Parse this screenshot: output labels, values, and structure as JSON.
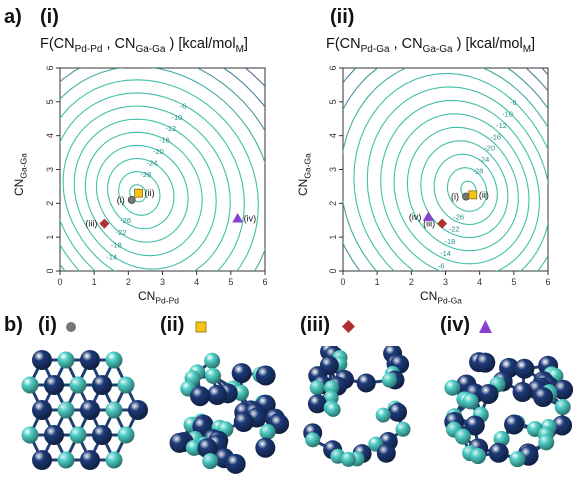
{
  "panel_a": {
    "label": "a)",
    "plots": [
      {
        "id": "i",
        "label": "(i)",
        "title_main": "F(CN",
        "title_sub1": "Pd-Pd",
        "title_sep": " , CN",
        "title_sub2": "Ga-Ga",
        "title_end": " ) [kcal/mol",
        "title_sub3": "M",
        "title_close": "]",
        "xlabel_main": "CN",
        "xlabel_sub": "Pd-Pd",
        "ylabel_main": "CN",
        "ylabel_sub": "Ga-Ga",
        "x_ticks": [
          "0",
          "1",
          "2",
          "3",
          "4",
          "5",
          "6"
        ],
        "y_ticks": [
          "0",
          "1",
          "2",
          "3",
          "4",
          "5",
          "6"
        ],
        "contour_labels": [
          "-6",
          "-10",
          "-12",
          "-16",
          "-20",
          "-24",
          "-28",
          "-26",
          "-22",
          "-18",
          "-14",
          "-12",
          "-10",
          "-8",
          "-6"
        ],
        "markers": [
          {
            "label": "(i)",
            "kind": "circle",
            "color": "#777777",
            "x": 2.1,
            "y": 2.1
          },
          {
            "label": "(ii)",
            "kind": "square",
            "color": "#f5c518",
            "x": 2.3,
            "y": 2.3
          },
          {
            "label": "(iii)",
            "kind": "diamond",
            "color": "#b03030",
            "x": 1.3,
            "y": 1.4
          },
          {
            "label": "(iv)",
            "kind": "triangle",
            "color": "#8a3fd1",
            "x": 5.2,
            "y": 1.55
          }
        ]
      },
      {
        "id": "ii",
        "label": "(ii)",
        "title_main": "F(CN",
        "title_sub1": "Pd-Ga",
        "title_sep": " , CN",
        "title_sub2": "Ga-Ga",
        "title_end": " ) [kcal/mol",
        "title_sub3": "M",
        "title_close": "]",
        "xlabel_main": "CN",
        "xlabel_sub": "Pd-Ga",
        "ylabel_main": "CN",
        "ylabel_sub": "Ga-Ga",
        "x_ticks": [
          "0",
          "1",
          "2",
          "3",
          "4",
          "5",
          "6"
        ],
        "y_ticks": [
          "0",
          "1",
          "2",
          "3",
          "4",
          "5",
          "6"
        ],
        "contour_labels": [
          "-6",
          "-10",
          "-12",
          "-16",
          "-20",
          "-24",
          "-28",
          "-26",
          "-22",
          "-18",
          "-14",
          "-6"
        ],
        "markers": [
          {
            "label": "(i)",
            "kind": "circle",
            "color": "#777777",
            "x": 3.6,
            "y": 2.2
          },
          {
            "label": "(ii)",
            "kind": "square",
            "color": "#f5c518",
            "x": 3.8,
            "y": 2.25
          },
          {
            "label": "(iii)",
            "kind": "diamond",
            "color": "#b03030",
            "x": 2.9,
            "y": 1.4
          },
          {
            "label": "(iv)",
            "kind": "triangle",
            "color": "#8a3fd1",
            "x": 2.5,
            "y": 1.6
          }
        ]
      }
    ]
  },
  "panel_b": {
    "label": "b)",
    "items": [
      {
        "label": "(i)",
        "marker_kind": "circle",
        "marker_color": "#777777"
      },
      {
        "label": "(ii)",
        "marker_kind": "square",
        "marker_color": "#f5c518"
      },
      {
        "label": "(iii)",
        "marker_kind": "diamond",
        "marker_color": "#b03030"
      },
      {
        "label": "(iv)",
        "marker_kind": "triangle",
        "marker_color": "#8a3fd1"
      }
    ]
  },
  "colors": {
    "pd_atom": "#1d3a78",
    "ga_atom": "#4fd1c8",
    "contour_low": "#40c0a8",
    "contour_high": "#5a2a8a"
  }
}
